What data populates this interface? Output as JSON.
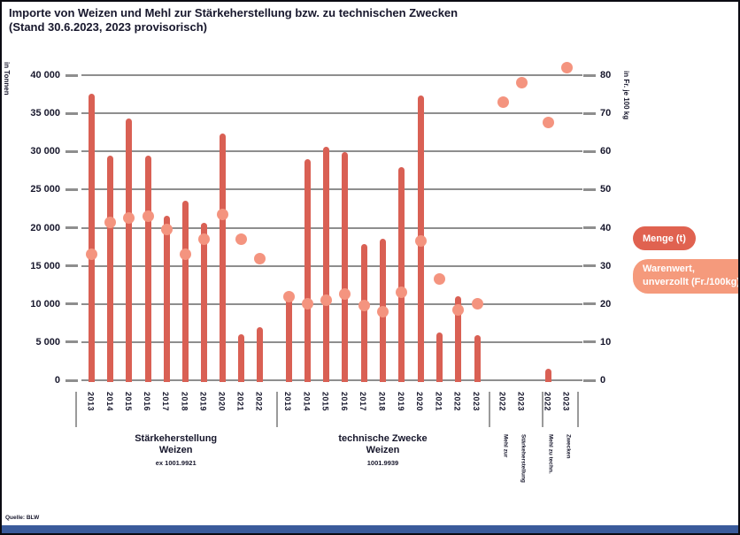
{
  "title": {
    "line1": "Importe von Weizen und Mehl zur Stärkeherstellung bzw. zu technischen Zwecken",
    "line2": "(Stand 30.6.2023, 2023 provisorisch)"
  },
  "source": "Quelle: BLW",
  "legend": [
    {
      "label": "Menge (t)",
      "color": "#e06250"
    },
    {
      "label": "Warenwert, unverzollt (Fr./100kg)",
      "color": "#f59a7c"
    }
  ],
  "colors": {
    "bar": "#d96054",
    "dot": "#f4947f",
    "gridline": "#8e8e8e",
    "footer": "#3a5b9b",
    "text": "#17172c"
  },
  "chart_data": {
    "type": "bar",
    "subtype": "combo bar (Menge) + dot (Warenwert)",
    "axes": {
      "left": {
        "title": "in Tonnen",
        "ticks": [
          "0",
          "5 000",
          "10 000",
          "15 000",
          "20 000",
          "25 000",
          "30 000",
          "35 000",
          "40 000"
        ],
        "range": [
          0,
          40000
        ],
        "grid": true
      },
      "right": {
        "title": "in Fr. je 100 kg",
        "ticks": [
          "0",
          "10",
          "20",
          "30",
          "40",
          "50",
          "60",
          "70",
          "80"
        ],
        "range": [
          0,
          80
        ]
      }
    },
    "groups": [
      {
        "label_lines": [
          "Stärkeherstellung",
          "Weizen"
        ],
        "tariff": "ex 1001.9921",
        "years": [
          "2013",
          "2014",
          "2015",
          "2016",
          "2017",
          "2018",
          "2019",
          "2020",
          "2021",
          "2022"
        ],
        "menge_t": [
          37600,
          29500,
          34300,
          29500,
          21600,
          23500,
          20600,
          32400,
          6000,
          6900
        ],
        "warenwert_fr_100kg": [
          33,
          41.5,
          42.5,
          43,
          39.5,
          33,
          37,
          43.5,
          37,
          32
        ]
      },
      {
        "label_lines": [
          "technische Zwecke",
          "Weizen"
        ],
        "tariff": "1001.9939",
        "years": [
          "2013",
          "2014",
          "2015",
          "2016",
          "2017",
          "2018",
          "2019",
          "2020",
          "2021",
          "2022",
          "2023"
        ],
        "menge_t": [
          11000,
          29000,
          30600,
          29900,
          17800,
          18600,
          27900,
          37300,
          6300,
          11000,
          5900
        ],
        "warenwert_fr_100kg": [
          22,
          20,
          21,
          22.5,
          19.5,
          18,
          23,
          36.5,
          26.5,
          18.5,
          20
        ]
      },
      {
        "label_lines": [
          "Mehl zur",
          "Stärkeherstellung"
        ],
        "rotated_label": true,
        "years": [
          "2022",
          "2023"
        ],
        "menge_t": [
          null,
          null
        ],
        "warenwert_fr_100kg": [
          73,
          78
        ]
      },
      {
        "label_lines": [
          "Mehl zu techn.",
          "Zwecken"
        ],
        "rotated_label": true,
        "years": [
          "2022",
          "2023"
        ],
        "menge_t": [
          1500,
          null
        ],
        "warenwert_fr_100kg": [
          67.5,
          82
        ]
      }
    ]
  }
}
